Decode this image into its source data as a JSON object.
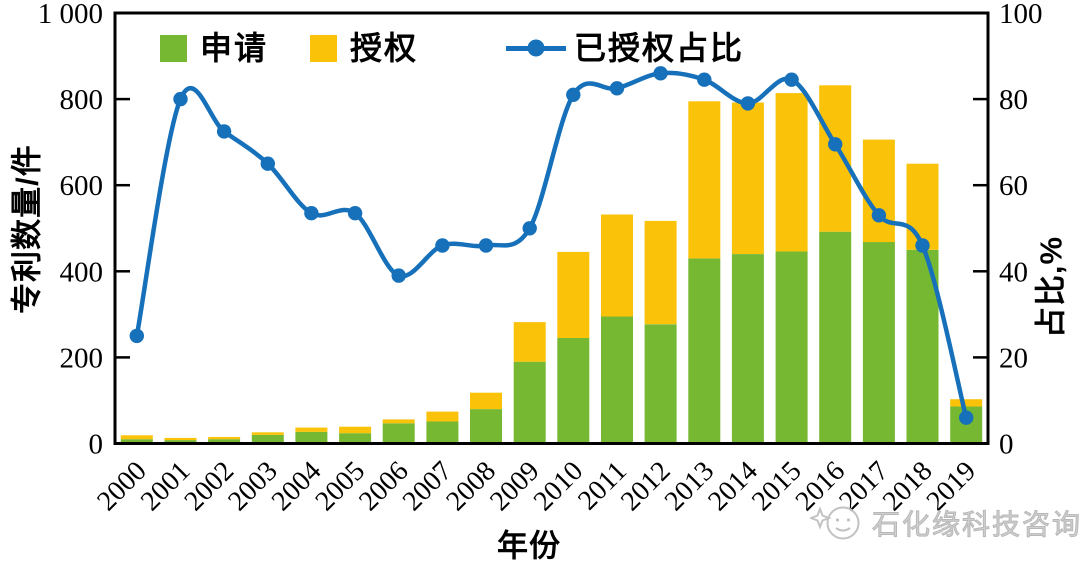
{
  "chart_data": {
    "type": "combo_stacked_bar_line",
    "title": "",
    "categories": [
      "2000",
      "2001",
      "2002",
      "2003",
      "2004",
      "2005",
      "2006",
      "2007",
      "2008",
      "2009",
      "2010",
      "2011",
      "2012",
      "2013",
      "2014",
      "2015",
      "2016",
      "2017",
      "2018",
      "2019"
    ],
    "series": [
      {
        "name": "申请",
        "type": "bar",
        "stack": "patents",
        "axis": "left",
        "color": "#76B832",
        "values": [
          10,
          8,
          10,
          20,
          27,
          24,
          47,
          51,
          80,
          190,
          245,
          295,
          277,
          430,
          440,
          446,
          492,
          468,
          450,
          86
        ]
      },
      {
        "name": "授权",
        "type": "bar",
        "stack": "patents",
        "axis": "left",
        "color": "#FAC30A",
        "values": [
          9,
          5,
          5,
          6,
          10,
          15,
          9,
          23,
          38,
          92,
          200,
          237,
          240,
          365,
          352,
          368,
          340,
          238,
          200,
          17
        ]
      },
      {
        "name": "已授权占比",
        "type": "line",
        "axis": "right",
        "color": "#1771BA",
        "values": [
          25,
          80,
          72.5,
          65,
          53.5,
          53.5,
          39,
          46,
          46,
          50,
          81,
          82.5,
          86,
          84.5,
          79,
          84.5,
          69.5,
          53,
          46,
          6
        ]
      }
    ],
    "left_axis": {
      "title": "专利数量/件",
      "min": 0,
      "max": 1000,
      "ticks": [
        0,
        200,
        400,
        600,
        800,
        1000
      ],
      "tick_labels": [
        "0",
        "200",
        "400",
        "600",
        "800",
        "1 000"
      ]
    },
    "right_axis": {
      "title": "占比,%",
      "min": 0,
      "max": 100,
      "ticks": [
        0,
        20,
        40,
        60,
        80,
        100
      ],
      "tick_labels": [
        "0",
        "20",
        "40",
        "60",
        "80",
        "100"
      ]
    },
    "x_axis": {
      "title": "年份"
    },
    "legend": {
      "position": "top-inside",
      "items": [
        "申请",
        "授权",
        "已授权占比"
      ]
    },
    "grid": false,
    "background": "#FFFFFF",
    "axis_color": "#000000"
  },
  "watermark": {
    "text": "石化缘科技咨询"
  }
}
